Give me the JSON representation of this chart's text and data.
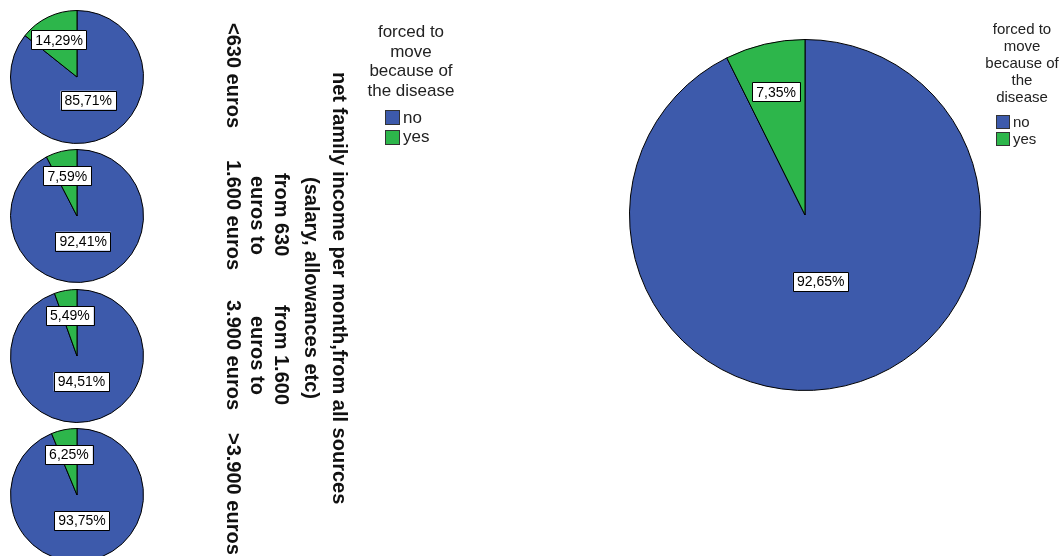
{
  "chart_data": [
    {
      "type": "pie",
      "title": "<630 euros",
      "categories": [
        "no",
        "yes"
      ],
      "values": [
        85.71,
        14.29
      ],
      "colors": [
        "#3d5aab",
        "#2db64b"
      ],
      "value_labels": [
        "85,71%",
        "14,29%"
      ],
      "legend": "right",
      "legend_title": "forced to move because of the disease",
      "annotations": [
        "net family income per month,from all sources (salary, allowances etc)"
      ]
    },
    {
      "type": "pie",
      "title": "from 630 euros to 1.600 euros",
      "categories": [
        null,
        null
      ],
      "values": [
        92.41,
        7.59
      ],
      "colors": [
        "#3d5aab",
        "#2db64b"
      ],
      "value_labels": [
        "92,41%",
        "7,59%"
      ]
    },
    {
      "type": "pie",
      "title": "from 1.600 euros to 3.900 euros",
      "categories": [
        null,
        null
      ],
      "values": [
        94.51,
        5.49
      ],
      "colors": [
        "#3d5aab",
        "#2db64b"
      ],
      "value_labels": [
        "94,51%",
        "5,49%"
      ]
    },
    {
      "type": "pie",
      "title": ">3.900 euros",
      "categories": [
        null,
        null
      ],
      "values": [
        93.75,
        6.25
      ],
      "colors": [
        "#3d5aab",
        "#2db64b"
      ],
      "value_labels": [
        "93,75%",
        "6,25%"
      ]
    },
    {
      "type": "pie",
      "categories": [
        "no",
        "yes"
      ],
      "values": [
        92.65,
        7.35
      ],
      "colors": [
        "#3d5aab",
        "#2db64b"
      ],
      "value_labels": [
        "92,65%",
        "7,35%"
      ],
      "legend": "top right",
      "legend_title": "forced to move because of the disease"
    }
  ]
}
